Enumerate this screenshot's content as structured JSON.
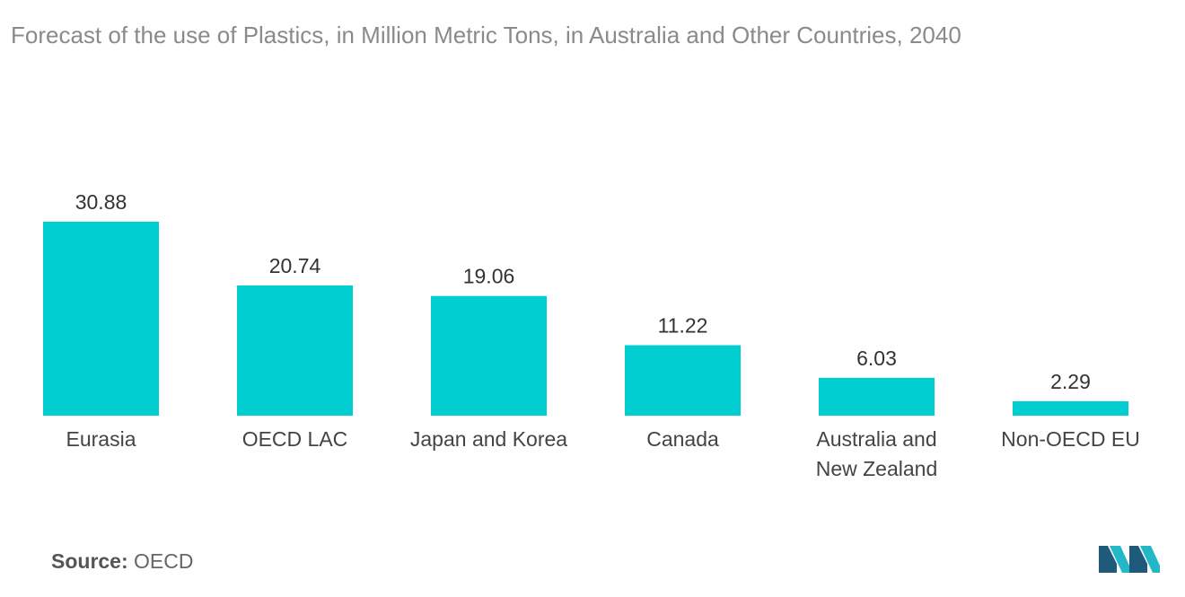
{
  "title": "Forecast of the use of Plastics, in Million Metric Tons,  in Australia and Other Countries, 2040",
  "source": {
    "label": "Source:",
    "value": "OECD"
  },
  "colors": {
    "bar": "#00CED1",
    "logo_dark": "#1f5a7a",
    "logo_light": "#22b8c8"
  },
  "logo_icon": "mordor-logo-icon",
  "chart_data": {
    "type": "bar",
    "title": "Forecast of the use of Plastics, in Million Metric Tons,  in Australia and Other Countries, 2040",
    "categories": [
      "Eurasia",
      "OECD LAC",
      "Japan and Korea",
      "Canada",
      "Australia and New Zealand",
      "Non-OECD EU"
    ],
    "category_lines": [
      [
        "Eurasia"
      ],
      [
        "OECD LAC"
      ],
      [
        "Japan and Korea"
      ],
      [
        "Canada"
      ],
      [
        "Australia and",
        "New Zealand"
      ],
      [
        "Non-OECD EU"
      ]
    ],
    "values": [
      30.88,
      20.74,
      19.06,
      11.22,
      6.03,
      2.29
    ],
    "value_labels": [
      "30.88",
      "20.74",
      "19.06",
      "11.22",
      "6.03",
      "2.29"
    ],
    "xlabel": "",
    "ylabel": "",
    "ylim": [
      0,
      30.88
    ],
    "grid": false,
    "legend": "none"
  }
}
